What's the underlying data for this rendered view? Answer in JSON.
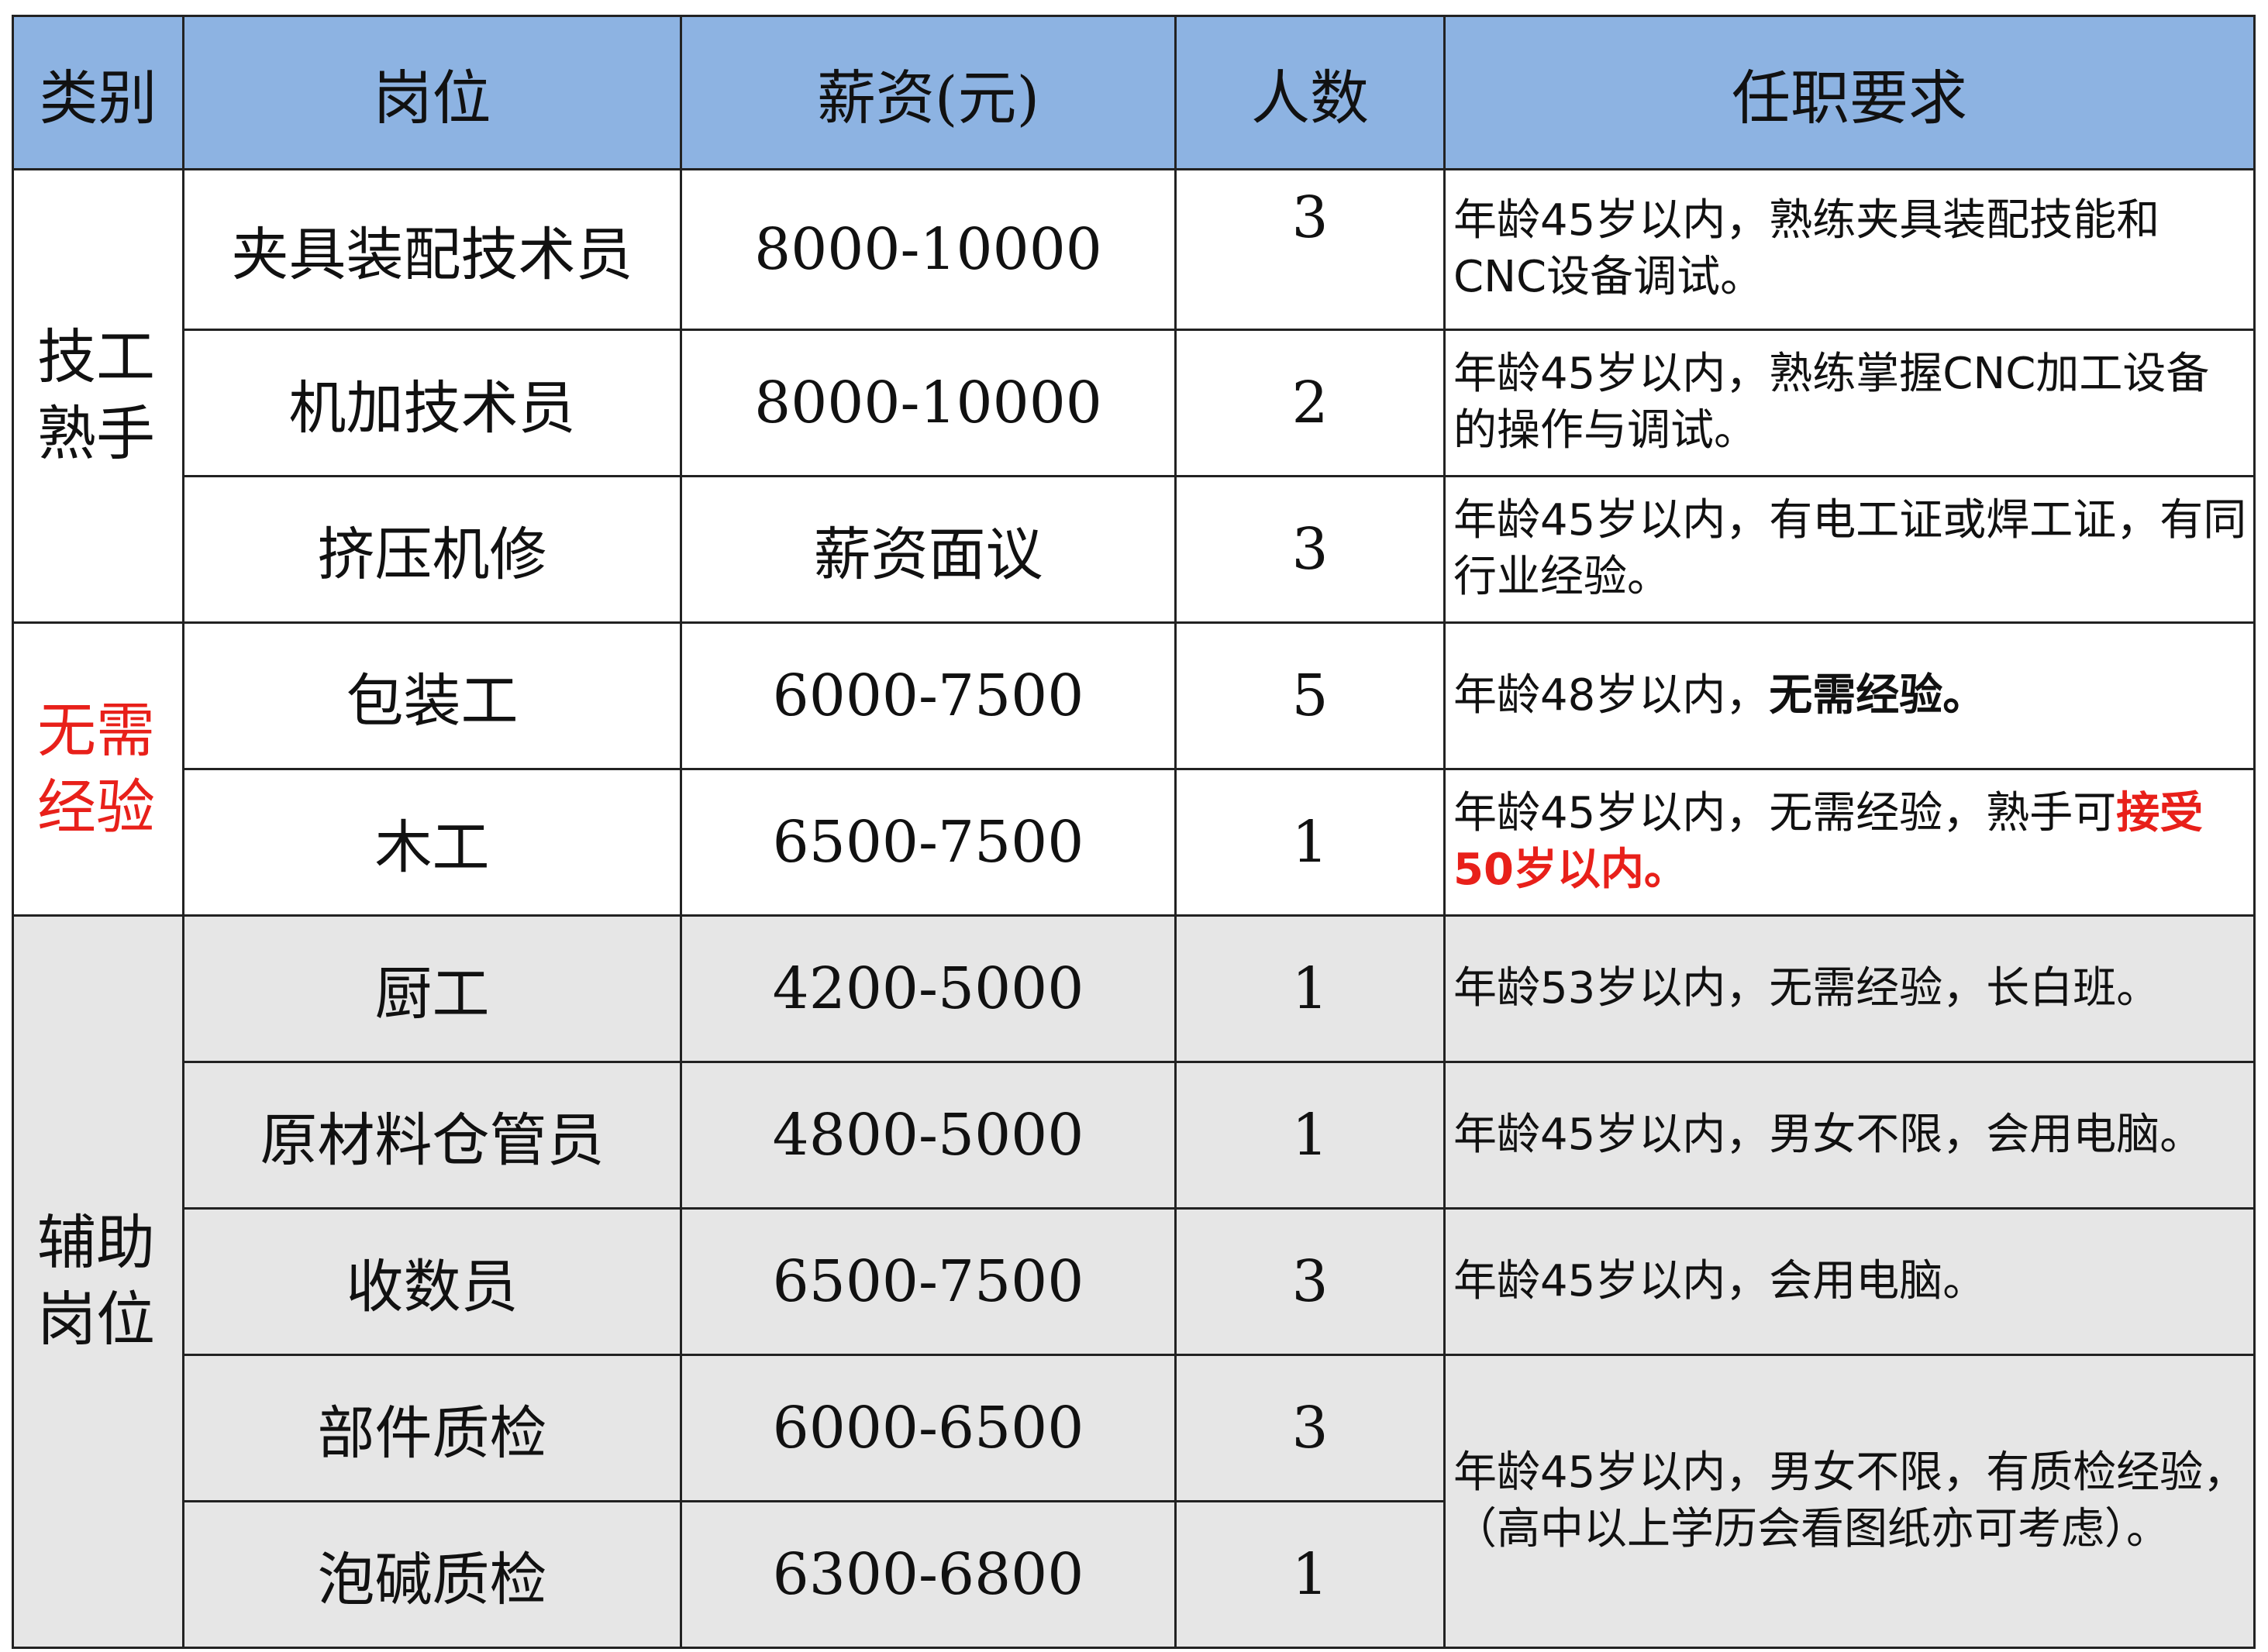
{
  "headers": {
    "category": "类别",
    "position": "岗位",
    "salary": "薪资(元)",
    "count": "人数",
    "requirements": "任职要求"
  },
  "groups": {
    "skilled": "技工熟手",
    "no_experience": "无需经验",
    "auxiliary": "辅助岗位"
  },
  "colors": {
    "header_bg": "#8db3e2",
    "gray_bg": "#e6e6e6",
    "red": "#e8201a"
  },
  "rows": [
    {
      "position": "夹具装配技术员",
      "salary": "8000-10000",
      "count": "3",
      "req": "年龄45岁以内，熟练夹具装配技能和CNC设备调试。"
    },
    {
      "position": "机加技术员",
      "salary": "8000-10000",
      "count": "2",
      "req": "年龄45岁以内，熟练掌握CNC加工设备的操作与调试。"
    },
    {
      "position": "挤压机修",
      "salary": "薪资面议",
      "count": "3",
      "req": "年龄45岁以内，有电工证或焊工证，有同行业经验。"
    },
    {
      "position": "包装工",
      "salary": "6000-7500",
      "count": "5",
      "req": "年龄48岁以内，",
      "req_bold": "无需经验。"
    },
    {
      "position": "木工",
      "salary": "6500-7500",
      "count": "1",
      "req": "年龄45岁以内，无需经验，熟手可",
      "req_red": "接受50岁以内。"
    },
    {
      "position": "厨工",
      "salary": "4200-5000",
      "count": "1",
      "req": "年龄53岁以内，无需经验，长白班。"
    },
    {
      "position": "原材料仓管员",
      "salary": "4800-5000",
      "count": "1",
      "req": "年龄45岁以内，男女不限，会用电脑。"
    },
    {
      "position": "收数员",
      "salary": "6500-7500",
      "count": "3",
      "req": "年龄45岁以内，会用电脑。"
    },
    {
      "position": "部件质检",
      "salary": "6000-6500",
      "count": "3",
      "req": "年龄45岁以内，男女不限，有质检经验，（高中以上学历会看图纸亦可考虑）。"
    },
    {
      "position": "泡碱质检",
      "salary": "6300-6800",
      "count": "1"
    }
  ]
}
